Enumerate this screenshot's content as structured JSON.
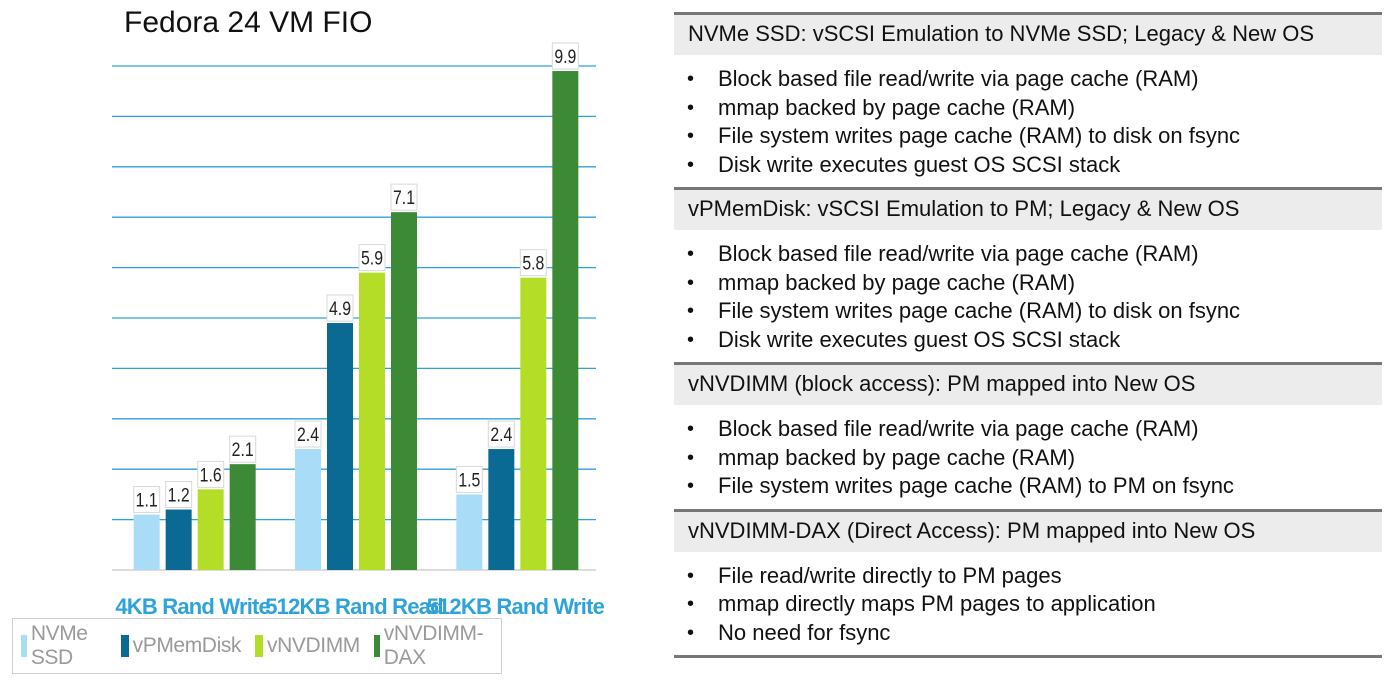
{
  "chart_data": {
    "type": "bar",
    "title": "Fedora 24 VM FIO",
    "categories": [
      "4KB Rand Write",
      "512KB Rand Read",
      "512KB Rand Write"
    ],
    "series": [
      {
        "name": "NVMe SSD",
        "color": "#a9dcf6",
        "values": [
          1.1,
          2.4,
          1.5
        ]
      },
      {
        "name": "vPMemDisk",
        "color": "#0b6a94",
        "values": [
          1.2,
          4.9,
          2.4
        ]
      },
      {
        "name": "vNVDIMM",
        "color": "#b3dd27",
        "values": [
          1.6,
          5.9,
          5.8
        ]
      },
      {
        "name": "vNVDIMM-DAX",
        "color": "#3d8a36",
        "values": [
          2.1,
          7.1,
          9.9
        ]
      }
    ],
    "ylim": [
      0,
      10
    ],
    "grid": true,
    "legend_position": "bottom",
    "category_label_color": "#2ea3d9",
    "gridline_color": "#2ea3d9"
  },
  "sections": [
    {
      "header": "NVMe SSD: vSCSI Emulation to NVMe SSD; Legacy & New OS",
      "bullets": [
        "Block based file read/write via page cache (RAM)",
        "mmap backed by page cache (RAM)",
        "File system writes page cache (RAM) to disk on fsync",
        "Disk write executes guest OS SCSI stack"
      ]
    },
    {
      "header": "vPMemDisk: vSCSI Emulation to PM; Legacy & New OS",
      "bullets": [
        "Block based file read/write via page cache (RAM)",
        "mmap backed by page cache (RAM)",
        "File system writes page cache (RAM) to disk on fsync",
        "Disk write executes guest OS SCSI stack"
      ]
    },
    {
      "header": "vNVDIMM (block access): PM mapped into New OS",
      "bullets": [
        "Block based file read/write via page cache (RAM)",
        "mmap backed by page cache (RAM)",
        "File system writes page cache (RAM) to PM on fsync"
      ]
    },
    {
      "header": "vNVDIMM-DAX (Direct Access): PM mapped into New OS",
      "bullets": [
        "File read/write directly to PM pages",
        "mmap directly maps PM pages to application",
        "No need for fsync"
      ]
    }
  ],
  "bullet_glyph": "•"
}
